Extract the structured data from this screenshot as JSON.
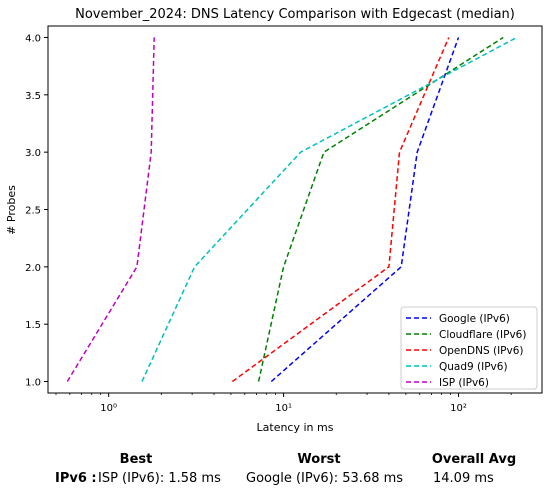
{
  "chart_data": {
    "type": "line",
    "title": "November_2024: DNS Latency Comparison with Edgecast (median)",
    "xlabel": "Latency in ms",
    "ylabel": "# Probes",
    "xscale": "log",
    "xlim": [
      0.45,
      300
    ],
    "ylim": [
      0.9,
      4.1
    ],
    "xticks": [
      {
        "value": 1,
        "label": "10⁰"
      },
      {
        "value": 10,
        "label": "10¹"
      },
      {
        "value": 100,
        "label": "10²"
      }
    ],
    "yticks": [
      1.0,
      1.5,
      2.0,
      2.5,
      3.0,
      3.5,
      4.0
    ],
    "ytick_labels": [
      "1.0",
      "1.5",
      "2.0",
      "2.5",
      "3.0",
      "3.5",
      "4.0"
    ],
    "grid": false,
    "legend_position": "lower right",
    "series": [
      {
        "name": "Google (IPv6)",
        "color": "#0000ff",
        "style": "dashed",
        "x": [
          8.5,
          47,
          58,
          100
        ],
        "y": [
          1,
          2,
          3,
          4
        ]
      },
      {
        "name": "Cloudflare (IPv6)",
        "color": "#008000",
        "style": "dashed",
        "x": [
          7.2,
          10,
          17,
          180
        ],
        "y": [
          1,
          2,
          3,
          4
        ]
      },
      {
        "name": "OpenDNS (IPv6)",
        "color": "#ff0000",
        "style": "dashed",
        "x": [
          5.1,
          40,
          46,
          88
        ],
        "y": [
          1,
          2,
          3,
          4
        ]
      },
      {
        "name": "Quad9 (IPv6)",
        "color": "#00bfbf",
        "style": "dashed",
        "x": [
          1.55,
          3.1,
          12.5,
          215
        ],
        "y": [
          1,
          2,
          3,
          4
        ]
      },
      {
        "name": "ISP (IPv6)",
        "color": "#bf00bf",
        "style": "dashed",
        "x": [
          0.58,
          1.45,
          1.75,
          1.82
        ],
        "y": [
          1,
          2,
          3,
          4
        ]
      }
    ]
  },
  "summary": {
    "row_label": "IPv6 :",
    "best_header": "Best",
    "worst_header": "Worst",
    "avg_header": "Overall Avg",
    "best_value": "ISP (IPv6): 1.58 ms",
    "worst_value": "Google (IPv6): 53.68 ms",
    "avg_value": "14.09 ms"
  }
}
